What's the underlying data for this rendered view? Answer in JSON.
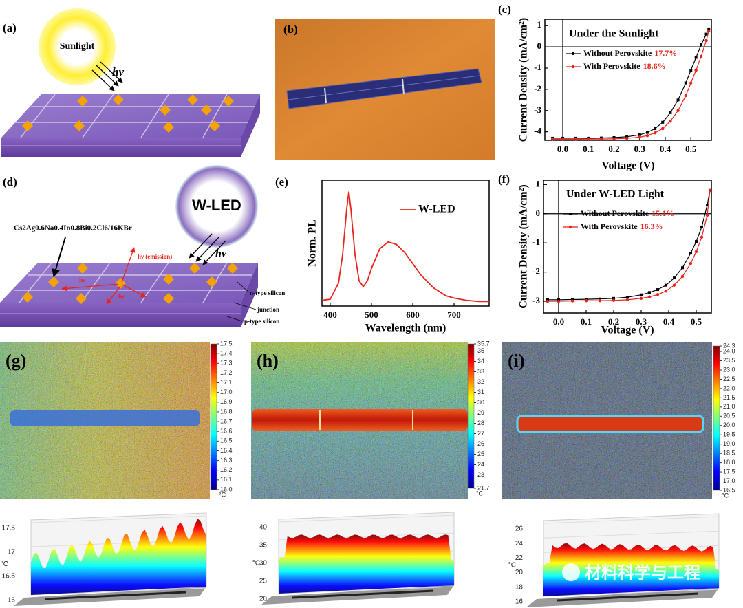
{
  "figure": {
    "a": {
      "label": "(a)",
      "sun": "Sunlight",
      "photon": "hν"
    },
    "b": {
      "label": "(b)"
    },
    "d": {
      "label": "(d)",
      "source": "W-LED",
      "material": "Cs2Ag0.6Na0.4In0.8Bi0.2Cl6/16KBr",
      "emission": "hν (emission)",
      "photon": "hν",
      "layers": [
        "n-type silicon",
        "junction",
        "p-type silicon"
      ]
    },
    "watermark": "材料科学与工程"
  },
  "chart_data": [
    {
      "type": "line",
      "label": "(c)",
      "title": "Under the Sunlight",
      "x_label": "Voltage (V)",
      "y_label": "Current Density (mA/cm²)",
      "zero_lines": true,
      "xlim": [
        -0.07,
        0.58
      ],
      "ylim": [
        -4.4,
        1.3
      ],
      "xticks": [
        {
          "value": 0,
          "label": "0.0"
        },
        0.1,
        0.2,
        0.3,
        0.4,
        0.5
      ],
      "yticks": [
        -4,
        -3,
        -2,
        -1,
        0,
        1
      ],
      "x": [
        -0.04,
        0,
        0.05,
        0.1,
        0.15,
        0.2,
        0.25,
        0.3,
        0.33,
        0.36,
        0.39,
        0.42,
        0.45,
        0.48,
        0.5,
        0.52,
        0.54,
        0.56,
        0.57
      ],
      "series": [
        {
          "name": "Without Perovskite",
          "annotation": "17.7%",
          "color": "#000000",
          "marker": "square",
          "values": [
            -4.3,
            -4.3,
            -4.3,
            -4.3,
            -4.29,
            -4.27,
            -4.23,
            -4.14,
            -4.03,
            -3.85,
            -3.55,
            -3.1,
            -2.5,
            -1.7,
            -1.1,
            -0.5,
            0.1,
            0.6,
            0.85
          ]
        },
        {
          "name": "With Perovskite",
          "annotation": "18.6%",
          "color": "#e8231b",
          "marker": "circle",
          "values": [
            -4.35,
            -4.35,
            -4.35,
            -4.34,
            -4.34,
            -4.33,
            -4.31,
            -4.25,
            -4.18,
            -4.05,
            -3.85,
            -3.5,
            -3.0,
            -2.3,
            -1.7,
            -1.1,
            -0.45,
            0.3,
            0.75
          ]
        }
      ]
    },
    {
      "type": "line",
      "label": "(e)",
      "x_label": "Wavelength (nm)",
      "y_label": "Norm. PL",
      "xlim": [
        380,
        785
      ],
      "ylim": [
        0,
        1.1
      ],
      "xticks": [
        400,
        500,
        600,
        700
      ],
      "x": [
        380,
        400,
        420,
        430,
        440,
        445,
        450,
        460,
        470,
        480,
        490,
        500,
        520,
        540,
        560,
        580,
        600,
        620,
        650,
        680,
        700,
        730,
        760,
        785
      ],
      "series": [
        {
          "name": "W-LED",
          "color": "#e8231b",
          "values": [
            0.05,
            0.06,
            0.2,
            0.45,
            0.85,
            1.0,
            0.85,
            0.45,
            0.22,
            0.17,
            0.22,
            0.33,
            0.5,
            0.56,
            0.54,
            0.47,
            0.37,
            0.27,
            0.16,
            0.09,
            0.07,
            0.05,
            0.04,
            0.04
          ]
        }
      ]
    },
    {
      "type": "line",
      "label": "(f)",
      "title": "Under W-LED Light",
      "x_label": "Voltage (V)",
      "y_label": "Current Density (mA/cm²)",
      "zero_lines": true,
      "xlim": [
        -0.055,
        0.555
      ],
      "ylim": [
        -3.4,
        1.15
      ],
      "xticks": [
        {
          "value": 0,
          "label": "0.0"
        },
        0.1,
        0.2,
        0.3,
        0.4,
        0.5
      ],
      "yticks": [
        -3,
        -2,
        -1,
        0,
        1
      ],
      "x": [
        -0.04,
        0,
        0.05,
        0.1,
        0.15,
        0.2,
        0.25,
        0.3,
        0.33,
        0.36,
        0.39,
        0.42,
        0.45,
        0.48,
        0.5,
        0.52,
        0.54,
        0.55
      ],
      "series": [
        {
          "name": "Without Perovskite",
          "annotation": "15.1%",
          "color": "#000000",
          "marker": "square",
          "values": [
            -2.95,
            -2.95,
            -2.94,
            -2.93,
            -2.92,
            -2.9,
            -2.86,
            -2.78,
            -2.7,
            -2.6,
            -2.45,
            -2.2,
            -1.85,
            -1.35,
            -0.95,
            -0.45,
            0.3,
            0.8
          ]
        },
        {
          "name": "With Perovskite",
          "annotation": "16.3%",
          "color": "#e8231b",
          "marker": "circle",
          "values": [
            -3.0,
            -3.0,
            -2.99,
            -2.98,
            -2.98,
            -2.97,
            -2.95,
            -2.9,
            -2.85,
            -2.77,
            -2.65,
            -2.45,
            -2.15,
            -1.7,
            -1.3,
            -0.8,
            -0.05,
            0.8
          ]
        }
      ]
    },
    {
      "type": "heatmap",
      "label": "(g)",
      "unit": "°C",
      "clim": [
        16.0,
        17.5
      ],
      "cticks": [
        17.5,
        17.4,
        17.3,
        17.2,
        17.1,
        {
          "value": 17,
          "label": "17.0"
        },
        16.9,
        16.8,
        16.7,
        16.6,
        16.5,
        16.4,
        16.3,
        16.2,
        16.1,
        {
          "value": 16,
          "label": "16.0"
        }
      ],
      "zlim": [
        16,
        17.5
      ],
      "zticks": [
        16,
        16.5,
        17,
        17.5
      ]
    },
    {
      "type": "heatmap",
      "label": "(h)",
      "unit": "°C",
      "clim": [
        21.7,
        35.7
      ],
      "cticks": [
        35.7,
        35,
        34,
        33,
        32,
        31,
        30,
        29,
        28,
        27,
        26,
        25,
        24,
        23,
        21.7
      ],
      "zlim": [
        20,
        40
      ],
      "zticks": [
        20,
        25,
        30,
        35,
        40
      ]
    },
    {
      "type": "heatmap",
      "label": "(i)",
      "unit": "°C",
      "clim": [
        16.5,
        24.3
      ],
      "cticks": [
        24.3,
        {
          "value": 24,
          "label": "24.0"
        },
        23.5,
        {
          "value": 23,
          "label": "23.0"
        },
        22.5,
        {
          "value": 22,
          "label": "22.0"
        },
        21.5,
        {
          "value": 21,
          "label": "21.0"
        },
        20.5,
        {
          "value": 20,
          "label": "20.0"
        },
        19.5,
        {
          "value": 19,
          "label": "19.0"
        },
        18.5,
        {
          "value": 18,
          "label": "18.0"
        },
        17.5,
        {
          "value": 17,
          "label": "17.0"
        },
        16.5
      ],
      "zlim": [
        16,
        26
      ],
      "zticks": [
        16,
        18,
        20,
        22,
        24,
        26
      ]
    }
  ]
}
